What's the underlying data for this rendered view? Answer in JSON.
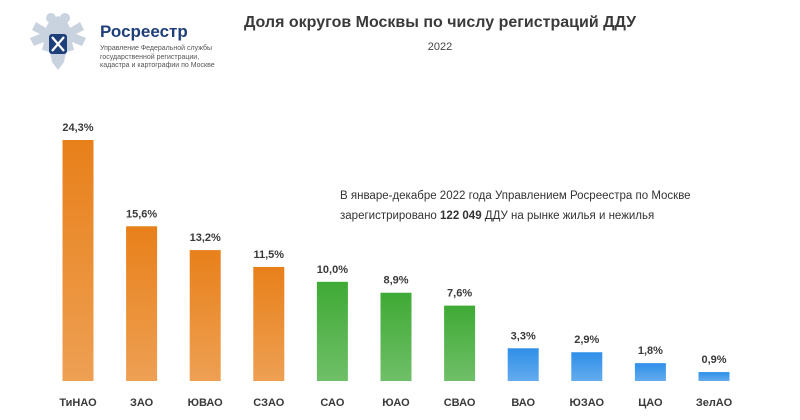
{
  "header": {
    "org_name": "Росреестр",
    "org_desc": "Управление Федеральной службы государственной регистрации, кадастра и картографии по Москве"
  },
  "chart_data": {
    "type": "bar",
    "title": "Доля округов Москвы по числу регистраций ДДУ",
    "subtitle": "2022",
    "categories": [
      "ТиНАО",
      "ЗАО",
      "ЮВАО",
      "СЗАО",
      "САО",
      "ЮАО",
      "СВАО",
      "ВАО",
      "ЮЗАО",
      "ЦАО",
      "ЗелАО"
    ],
    "values": [
      24.3,
      15.6,
      13.2,
      11.5,
      10.0,
      8.9,
      7.6,
      3.3,
      2.9,
      1.8,
      0.9
    ],
    "value_labels": [
      "24,3%",
      "15,6%",
      "13,2%",
      "11,5%",
      "10,0%",
      "8,9%",
      "7,6%",
      "3,3%",
      "2,9%",
      "1,8%",
      "0,9%"
    ],
    "colors": [
      "#e8801a",
      "#e8801a",
      "#e8801a",
      "#e8801a",
      "#3faa35",
      "#3faa35",
      "#3faa35",
      "#2f8fe8",
      "#2f8fe8",
      "#2f8fe8",
      "#2f8fe8"
    ],
    "xlabel": "",
    "ylabel": "",
    "grid": false
  },
  "note": {
    "line1": "В январе-декабре  2022 года Управлением  Росреестра  по Москве",
    "line2_prefix": "зарегистрировано  ",
    "line2_bold": "122 049",
    "line2_suffix": " ДДУ на рынке жилья и нежилья"
  }
}
